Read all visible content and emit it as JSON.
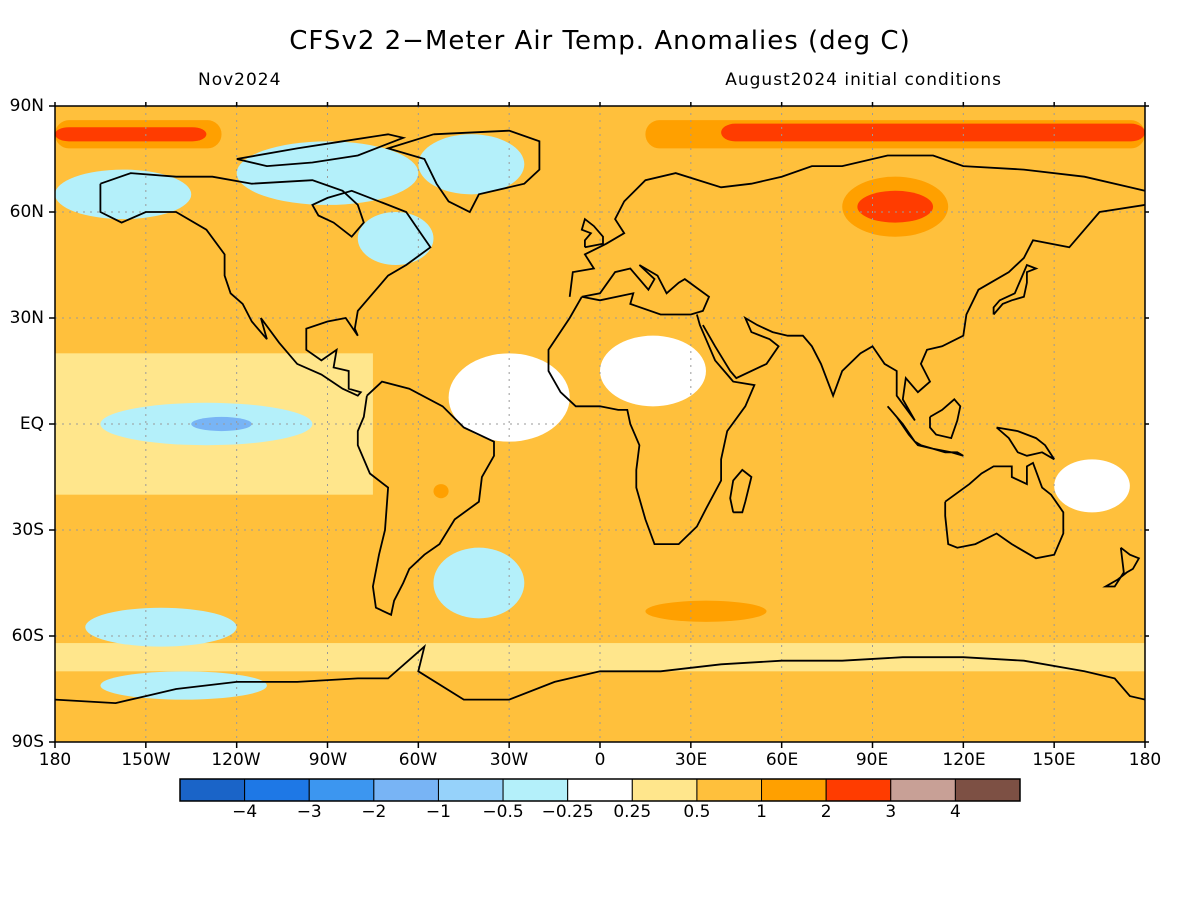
{
  "title": "CFSv2 2−Meter Air Temp. Anomalies (deg C)",
  "valid_month": "Nov2024",
  "initial_conditions": "August2024 initial conditions",
  "lat_labels": [
    "90N",
    "60N",
    "30N",
    "EQ",
    "30S",
    "60S",
    "90S"
  ],
  "lon_labels": [
    "180",
    "150W",
    "120W",
    "90W",
    "60W",
    "30W",
    "0",
    "30E",
    "60E",
    "90E",
    "120E",
    "150E",
    "180"
  ],
  "colorbar": {
    "colors": [
      "#1a64c8",
      "#1e78e6",
      "#3c96f0",
      "#78b4f5",
      "#96d2fa",
      "#b4f0fa",
      "#ffffff",
      "#ffe68c",
      "#ffc03c",
      "#ffa000",
      "#ff3c00",
      "#c8a096",
      "#7d5044"
    ],
    "labels": [
      "−4",
      "−3",
      "−2",
      "−1",
      "−0.5",
      "−0.25",
      "0.25",
      "0.5",
      "1",
      "2",
      "3",
      "4"
    ]
  },
  "map_data": {
    "projection": "cylindrical equidistant",
    "lon_range": [
      -180,
      180
    ],
    "lat_range": [
      -90,
      90
    ],
    "gridlines": "dotted every 30 degrees",
    "background_anomaly_class": "0.5 to 1",
    "features": [
      {
        "name": "arctic-band-warm-west",
        "lon": [
          -180,
          -115
        ],
        "lat": [
          76,
          90
        ],
        "level": 2
      },
      {
        "name": "arctic-band-strong-west",
        "lon": [
          -180,
          -125
        ],
        "lat": [
          78,
          86
        ],
        "level": 3
      },
      {
        "name": "arctic-band-peak-west",
        "lon": [
          -180,
          -130
        ],
        "lat": [
          80,
          84
        ],
        "level": 4
      },
      {
        "name": "arctic-band-warm-east",
        "lon": [
          5,
          180
        ],
        "lat": [
          76,
          90
        ],
        "level": 2
      },
      {
        "name": "arctic-band-strong-east",
        "lon": [
          15,
          180
        ],
        "lat": [
          78,
          86
        ],
        "level": 3
      },
      {
        "name": "arctic-band-peak-east",
        "lon": [
          40,
          180
        ],
        "lat": [
          80,
          85
        ],
        "level": 4
      },
      {
        "name": "siberia-warm",
        "lon": [
          75,
          120
        ],
        "lat": [
          50,
          75
        ],
        "level": 2
      },
      {
        "name": "siberia-strong",
        "lon": [
          80,
          115
        ],
        "lat": [
          53,
          70
        ],
        "level": 3
      },
      {
        "name": "siberia-peak",
        "lon": [
          85,
          110
        ],
        "lat": [
          57,
          66
        ],
        "level": 4
      },
      {
        "name": "canadian-archipelago-cool",
        "lon": [
          -120,
          -60
        ],
        "lat": [
          62,
          80
        ],
        "level": -1
      },
      {
        "name": "greenland-cool",
        "lon": [
          -60,
          -25
        ],
        "lat": [
          65,
          82
        ],
        "level": -1
      },
      {
        "name": "alaska-cool",
        "lon": [
          -180,
          -135
        ],
        "lat": [
          58,
          72
        ],
        "level": -1
      },
      {
        "name": "hudson-strait-cool",
        "lon": [
          -80,
          -55
        ],
        "lat": [
          45,
          60
        ],
        "level": -1
      },
      {
        "name": "east-pacific-equatorial-cool",
        "lon": [
          -165,
          -95
        ],
        "lat": [
          -6,
          6
        ],
        "level": -1
      },
      {
        "name": "east-pacific-equatorial-core",
        "lon": [
          -135,
          -115
        ],
        "lat": [
          -2,
          2
        ],
        "level": -3
      },
      {
        "name": "southern-ocean-pacific-cool",
        "lon": [
          -170,
          -120
        ],
        "lat": [
          -63,
          -52
        ],
        "level": -1
      },
      {
        "name": "amundsen-sea-cool",
        "lon": [
          -165,
          -110
        ],
        "lat": [
          -78,
          -70
        ],
        "level": -1
      },
      {
        "name": "south-atlantic-cool",
        "lon": [
          -55,
          -25
        ],
        "lat": [
          -55,
          -35
        ],
        "level": -1
      },
      {
        "name": "south-atlantic-warm-spot",
        "lon": [
          15,
          55
        ],
        "lat": [
          -56,
          -50
        ],
        "level": 3
      },
      {
        "name": "brazil-warm-spot",
        "lon": [
          -55,
          -50
        ],
        "lat": [
          -21,
          -17
        ],
        "level": 3
      },
      {
        "name": "tropical-atlantic-neutral",
        "lon": [
          -50,
          -10
        ],
        "lat": [
          -5,
          20
        ],
        "level": 0
      },
      {
        "name": "west-pacific-neutral",
        "lon": [
          150,
          175
        ],
        "lat": [
          -25,
          -10
        ],
        "level": 0
      },
      {
        "name": "north-africa-neutral",
        "lon": [
          0,
          35
        ],
        "lat": [
          5,
          25
        ],
        "level": 0
      }
    ]
  }
}
